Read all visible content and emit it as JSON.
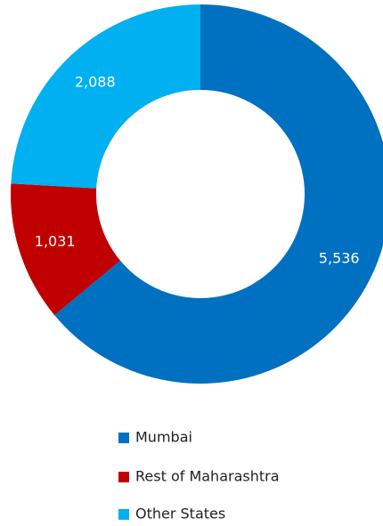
{
  "chart_data": {
    "type": "donut",
    "categories": [
      "Mumbai",
      "Rest of Maharashtra",
      "Other States"
    ],
    "values": [
      5536,
      1031,
      2088
    ],
    "value_labels": [
      "5,536",
      "1,031",
      "2,088"
    ],
    "colors": [
      "#0070c0",
      "#c00000",
      "#00b0f0"
    ],
    "legend": "bottom"
  }
}
